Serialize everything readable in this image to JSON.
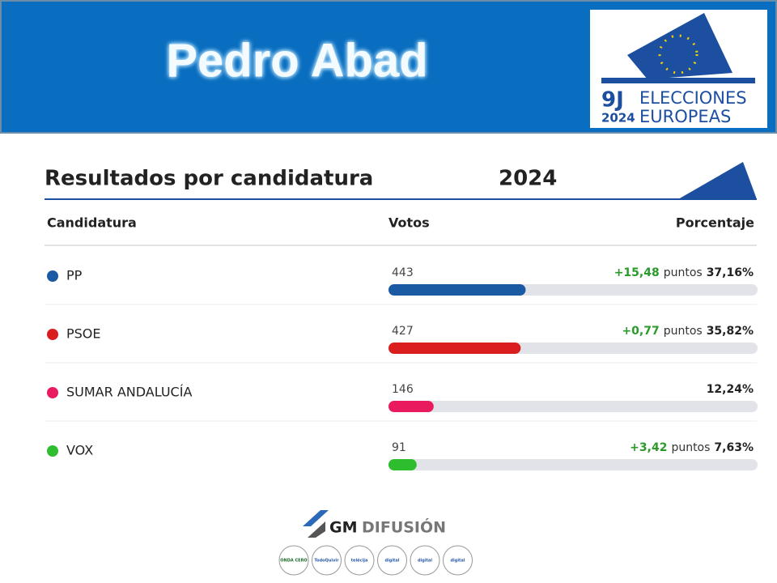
{
  "header": {
    "title": "Pedro Abad",
    "logo": {
      "day": "9J",
      "year": "2024",
      "line1": "ELECCIONES",
      "line2": "EUROPEAS"
    }
  },
  "section": {
    "title": "Resultados por candidatura",
    "year": "2024"
  },
  "table": {
    "columns": [
      "Candidatura",
      "Votos",
      "Porcentaje"
    ],
    "rows": [
      {
        "name": "PP",
        "color": "#1a5aa3",
        "votes": 443,
        "change": "+15,48",
        "change_unit": "puntos",
        "percent": {
          "value": 37.16,
          "label": "37,16%"
        }
      },
      {
        "name": "PSOE",
        "color": "#da1e1e",
        "votes": 427,
        "change": "+0,77",
        "change_unit": "puntos",
        "percent": {
          "value": 35.82,
          "label": "35,82%"
        }
      },
      {
        "name": "SUMAR ANDALUCÍA",
        "color": "#ea1a5e",
        "votes": 146,
        "percent": {
          "value": 12.24,
          "label": "12,24%"
        }
      },
      {
        "name": "VOX",
        "color": "#2ebd2e",
        "votes": 91,
        "change": "+3,42",
        "change_unit": "puntos",
        "percent": {
          "value": 7.63,
          "label": "7,63%"
        }
      }
    ]
  },
  "footer": {
    "brand": "GM",
    "brand2": "DIFUSIÓN",
    "media": [
      "ONDA CERO",
      "TodoQuivir",
      "telécija",
      "digital",
      "digital",
      "digital"
    ]
  }
}
